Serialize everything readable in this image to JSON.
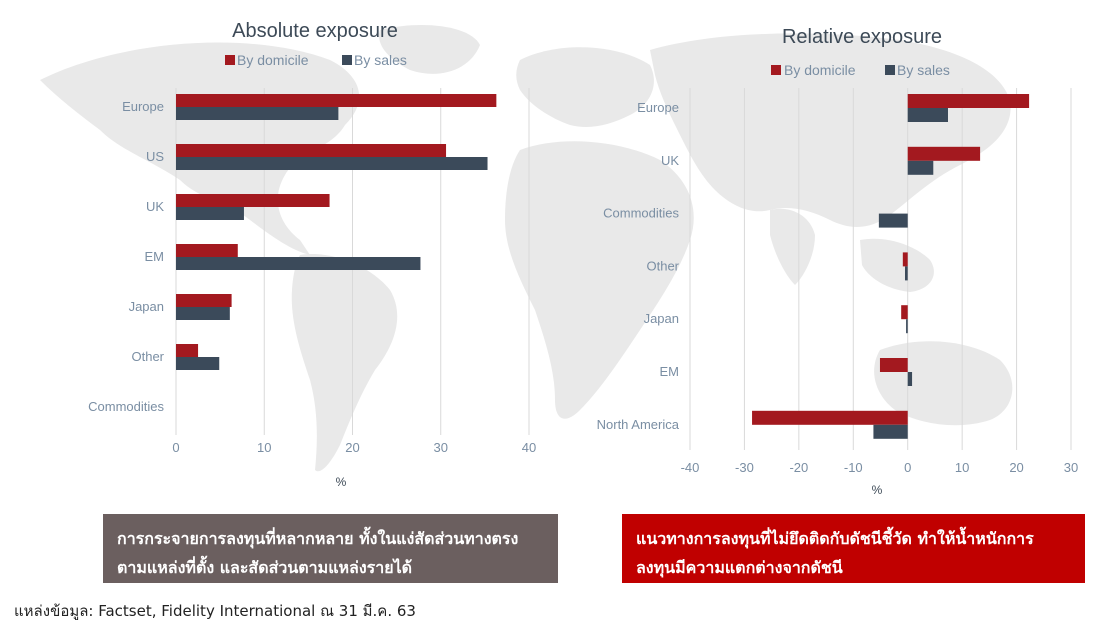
{
  "colors": {
    "domicile": "#a3191f",
    "sales": "#3b4a5a",
    "grid": "#d9d9d9",
    "map": "#e8e8e8"
  },
  "chart_data": [
    {
      "type": "bar",
      "orientation": "horizontal",
      "title": "Absolute exposure",
      "categories": [
        "Europe",
        "US",
        "UK",
        "EM",
        "Japan",
        "Other",
        "Commodities"
      ],
      "series": [
        {
          "name": "By domicile",
          "values": [
            36.3,
            30.6,
            17.4,
            7.0,
            6.3,
            2.5,
            0
          ]
        },
        {
          "name": "By sales",
          "values": [
            18.4,
            35.3,
            7.7,
            27.7,
            6.1,
            4.9,
            0
          ]
        }
      ],
      "xlabel": "%",
      "xlim": [
        0,
        40
      ],
      "xticks": [
        0,
        10,
        20,
        30,
        40
      ],
      "grid": true,
      "legend": "top"
    },
    {
      "type": "bar",
      "orientation": "horizontal",
      "title": "Relative exposure",
      "categories": [
        "Europe",
        "UK",
        "Commodities",
        "Other",
        "Japan",
        "EM",
        "North America"
      ],
      "series": [
        {
          "name": "By domicile",
          "values": [
            22.3,
            13.3,
            0,
            -0.9,
            -1.2,
            -5.1,
            -28.6
          ]
        },
        {
          "name": "By sales",
          "values": [
            7.4,
            4.7,
            -5.3,
            -0.5,
            -0.3,
            0.8,
            -6.3
          ]
        }
      ],
      "xlabel": "%",
      "xlim": [
        -40,
        30
      ],
      "xticks": [
        -40,
        -30,
        -20,
        -10,
        0,
        10,
        20,
        30
      ],
      "grid": true,
      "legend": "top"
    }
  ],
  "boxes": {
    "left": "การกระจายการลงทุนที่หลากหลาย ทั้งในแง่สัดส่วนทางตรงตามแหล่งที่ตั้ง และสัดส่วนตามแหล่งรายได้",
    "right": "แนวทางการลงทุนที่ไม่ยึดติดกับดัชนีชี้วัด ทำให้น้ำหนักการลงทุนมีความแตกต่างจากดัชนี"
  },
  "source": "แหล่งข้อมูล: Factset, Fidelity International ณ 31 มี.ค. 63"
}
